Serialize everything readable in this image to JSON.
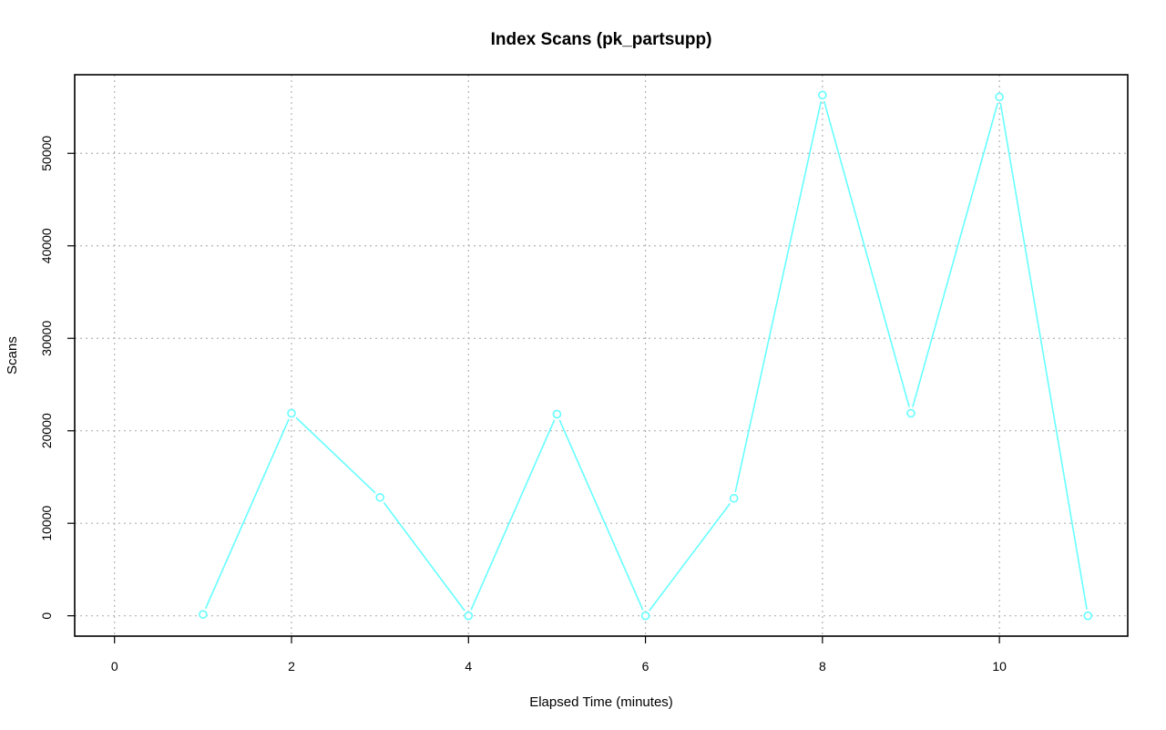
{
  "chart_data": {
    "type": "line",
    "title": "Index Scans (pk_partsupp)",
    "xlabel": "Elapsed Time (minutes)",
    "ylabel": "Scans",
    "xlim": [
      -0.45,
      11.45
    ],
    "ylim": [
      -2200,
      58500
    ],
    "xticks": [
      0,
      2,
      4,
      6,
      8,
      10
    ],
    "yticks": [
      0,
      10000,
      20000,
      30000,
      40000,
      50000
    ],
    "grid": true,
    "series": [
      {
        "color": "#66ffff",
        "marker": "open-circle",
        "x": [
          1,
          2,
          3,
          4,
          5,
          6,
          7,
          8,
          9,
          10,
          11
        ],
        "y": [
          150,
          21900,
          12800,
          0,
          21800,
          0,
          12700,
          56300,
          21900,
          56100,
          0
        ]
      }
    ]
  }
}
